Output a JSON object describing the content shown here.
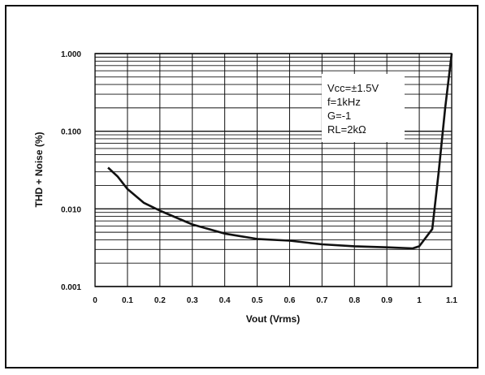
{
  "chart_data": {
    "type": "line",
    "xlabel": "Vout (Vrms)",
    "ylabel": "THD + Noise (%)",
    "xlim": [
      0,
      1.1
    ],
    "ylim": [
      0.001,
      1.0
    ],
    "yscale": "log",
    "grid": true,
    "x_ticks": [
      "0",
      "0.1",
      "0.2",
      "0.3",
      "0.4",
      "0.5",
      "0.6",
      "0.7",
      "0.8",
      "0.9",
      "1",
      "1.1"
    ],
    "y_ticks": [
      "0.001",
      "0.010",
      "0.100",
      "1.000"
    ],
    "annotation_lines": [
      "Vcc=±1.5V",
      "f=1kHz",
      "G=-1",
      "RL=2kΩ"
    ],
    "series": [
      {
        "color": "#111111",
        "x": [
          0.04,
          0.07,
          0.1,
          0.15,
          0.2,
          0.3,
          0.4,
          0.5,
          0.6,
          0.7,
          0.8,
          0.9,
          0.98,
          1.0,
          1.04,
          1.06,
          1.08,
          1.1
        ],
        "y": [
          0.034,
          0.026,
          0.018,
          0.012,
          0.0095,
          0.0063,
          0.0048,
          0.0041,
          0.0039,
          0.0035,
          0.0033,
          0.0032,
          0.0031,
          0.0033,
          0.0055,
          0.03,
          0.2,
          1.0
        ]
      }
    ]
  }
}
